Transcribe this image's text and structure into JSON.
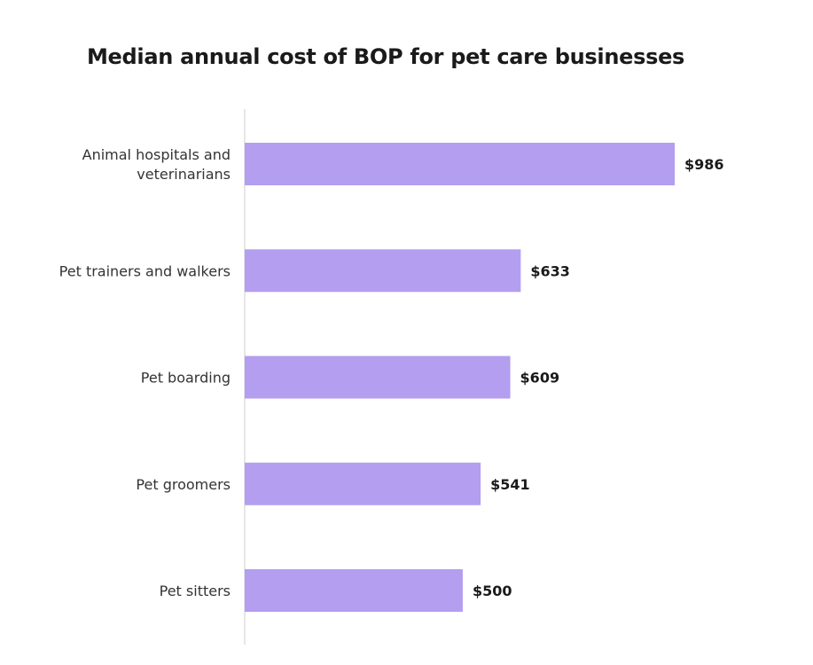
{
  "chart_data": {
    "type": "bar",
    "orientation": "horizontal",
    "title": "Median annual cost of BOP for pet care businesses",
    "categories": [
      [
        "Animal hospitals and",
        "veterinarians"
      ],
      [
        "Pet trainers and walkers"
      ],
      [
        "Pet boarding"
      ],
      [
        "Pet groomers"
      ],
      [
        "Pet sitters"
      ]
    ],
    "values": [
      986,
      633,
      609,
      541,
      500
    ],
    "value_labels": [
      "$986",
      "$633",
      "$609",
      "$541",
      "$500"
    ],
    "xlabel": "",
    "ylabel": "",
    "xlim": [
      0,
      1000
    ],
    "grid": false,
    "bar_color": "#b39ef0",
    "axis_color": "#cccccc"
  }
}
